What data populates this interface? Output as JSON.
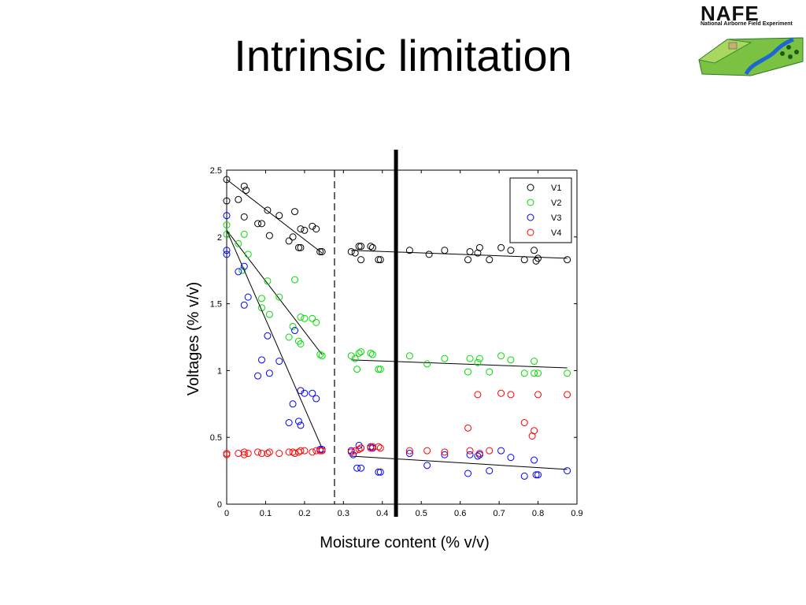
{
  "slide": {
    "title": "Intrinsic limitation"
  },
  "logo": {
    "title": "NAFE",
    "subtitle": "National Airborne Field Experiment"
  },
  "chart_data": {
    "type": "scatter",
    "title": "",
    "xlabel": "Moisture content (% v/v)",
    "ylabel": "Voltages (% v/v)",
    "xlim": [
      0,
      0.9
    ],
    "ylim": [
      0,
      2.5
    ],
    "xticks": [
      0,
      0.1,
      0.2,
      0.3,
      0.4,
      0.5,
      0.6,
      0.7,
      0.8,
      0.9
    ],
    "yticks": [
      0,
      0.5,
      1,
      1.5,
      2,
      2.5
    ],
    "grid": false,
    "legend_position": "top-right",
    "dashed_vline_x": 0.277,
    "solid_vline_x": 0.435,
    "series": [
      {
        "name": "V1",
        "color": "#000000",
        "points": [
          [
            0,
            2.43
          ],
          [
            0,
            2.27
          ],
          [
            0.03,
            2.28
          ],
          [
            0.045,
            2.38
          ],
          [
            0.05,
            2.35
          ],
          [
            0.045,
            2.15
          ],
          [
            0.08,
            2.1
          ],
          [
            0.09,
            2.1
          ],
          [
            0.105,
            2.2
          ],
          [
            0.11,
            2.01
          ],
          [
            0.135,
            2.16
          ],
          [
            0.16,
            1.97
          ],
          [
            0.17,
            2.0
          ],
          [
            0.175,
            2.19
          ],
          [
            0.185,
            1.92
          ],
          [
            0.19,
            1.92
          ],
          [
            0.19,
            2.06
          ],
          [
            0.2,
            2.05
          ],
          [
            0.22,
            2.08
          ],
          [
            0.23,
            2.06
          ],
          [
            0.24,
            1.89
          ],
          [
            0.245,
            1.89
          ],
          [
            0.32,
            1.89
          ],
          [
            0.33,
            1.88
          ],
          [
            0.34,
            1.93
          ],
          [
            0.345,
            1.83
          ],
          [
            0.345,
            1.93
          ],
          [
            0.37,
            1.93
          ],
          [
            0.375,
            1.92
          ],
          [
            0.39,
            1.83
          ],
          [
            0.395,
            1.83
          ],
          [
            0.47,
            1.9
          ],
          [
            0.52,
            1.87
          ],
          [
            0.56,
            1.9
          ],
          [
            0.62,
            1.83
          ],
          [
            0.625,
            1.89
          ],
          [
            0.645,
            1.88
          ],
          [
            0.65,
            1.92
          ],
          [
            0.675,
            1.83
          ],
          [
            0.705,
            1.92
          ],
          [
            0.73,
            1.9
          ],
          [
            0.765,
            1.83
          ],
          [
            0.79,
            1.9
          ],
          [
            0.795,
            1.82
          ],
          [
            0.8,
            1.84
          ],
          [
            0.875,
            1.83
          ]
        ],
        "trend": [
          [
            [
              0,
              2.43
            ],
            [
              0.245,
              1.88
            ]
          ],
          [
            [
              0.32,
              1.9
            ],
            [
              0.875,
              1.84
            ]
          ]
        ]
      },
      {
        "name": "V2",
        "color": "#00dd00",
        "points": [
          [
            0,
            2.09
          ],
          [
            0,
            2.02
          ],
          [
            0.03,
            1.95
          ],
          [
            0.045,
            2.02
          ],
          [
            0.055,
            1.87
          ],
          [
            0.04,
            1.75
          ],
          [
            0.09,
            1.54
          ],
          [
            0.105,
            1.67
          ],
          [
            0.09,
            1.47
          ],
          [
            0.11,
            1.42
          ],
          [
            0.135,
            1.55
          ],
          [
            0.16,
            1.25
          ],
          [
            0.17,
            1.33
          ],
          [
            0.175,
            1.68
          ],
          [
            0.185,
            1.22
          ],
          [
            0.19,
            1.2
          ],
          [
            0.19,
            1.4
          ],
          [
            0.2,
            1.39
          ],
          [
            0.22,
            1.39
          ],
          [
            0.23,
            1.36
          ],
          [
            0.24,
            1.12
          ],
          [
            0.245,
            1.11
          ],
          [
            0.32,
            1.11
          ],
          [
            0.33,
            1.09
          ],
          [
            0.335,
            1.01
          ],
          [
            0.34,
            1.13
          ],
          [
            0.345,
            1.14
          ],
          [
            0.37,
            1.13
          ],
          [
            0.375,
            1.12
          ],
          [
            0.39,
            1.01
          ],
          [
            0.395,
            1.01
          ],
          [
            0.47,
            1.11
          ],
          [
            0.515,
            1.05
          ],
          [
            0.56,
            1.09
          ],
          [
            0.62,
            0.99
          ],
          [
            0.625,
            1.09
          ],
          [
            0.645,
            1.06
          ],
          [
            0.65,
            1.09
          ],
          [
            0.675,
            0.99
          ],
          [
            0.705,
            1.11
          ],
          [
            0.73,
            1.08
          ],
          [
            0.765,
            0.98
          ],
          [
            0.79,
            1.07
          ],
          [
            0.79,
            0.98
          ],
          [
            0.8,
            0.98
          ],
          [
            0.875,
            0.98
          ]
        ],
        "trend": [
          [
            [
              0,
              2.05
            ],
            [
              0.245,
              1.12
            ]
          ],
          [
            [
              0.32,
              1.08
            ],
            [
              0.875,
              1.02
            ]
          ]
        ]
      },
      {
        "name": "V3",
        "color": "#0000ff",
        "points": [
          [
            0,
            2.16
          ],
          [
            0,
            1.87
          ],
          [
            0,
            1.9
          ],
          [
            0.03,
            1.74
          ],
          [
            0.045,
            1.78
          ],
          [
            0.045,
            1.49
          ],
          [
            0.055,
            1.55
          ],
          [
            0.08,
            0.96
          ],
          [
            0.09,
            1.08
          ],
          [
            0.105,
            1.26
          ],
          [
            0.11,
            0.98
          ],
          [
            0.135,
            1.07
          ],
          [
            0.16,
            0.61
          ],
          [
            0.17,
            0.75
          ],
          [
            0.175,
            1.3
          ],
          [
            0.185,
            0.62
          ],
          [
            0.19,
            0.85
          ],
          [
            0.19,
            0.59
          ],
          [
            0.2,
            0.83
          ],
          [
            0.22,
            0.83
          ],
          [
            0.23,
            0.79
          ],
          [
            0.24,
            0.41
          ],
          [
            0.245,
            0.41
          ],
          [
            0.32,
            0.4
          ],
          [
            0.325,
            0.37
          ],
          [
            0.335,
            0.27
          ],
          [
            0.34,
            0.44
          ],
          [
            0.345,
            0.42
          ],
          [
            0.345,
            0.27
          ],
          [
            0.37,
            0.43
          ],
          [
            0.375,
            0.42
          ],
          [
            0.39,
            0.24
          ],
          [
            0.395,
            0.24
          ],
          [
            0.47,
            0.38
          ],
          [
            0.515,
            0.29
          ],
          [
            0.56,
            0.37
          ],
          [
            0.62,
            0.23
          ],
          [
            0.625,
            0.37
          ],
          [
            0.645,
            0.36
          ],
          [
            0.65,
            0.37
          ],
          [
            0.675,
            0.25
          ],
          [
            0.705,
            0.4
          ],
          [
            0.73,
            0.35
          ],
          [
            0.765,
            0.21
          ],
          [
            0.79,
            0.33
          ],
          [
            0.795,
            0.22
          ],
          [
            0.8,
            0.22
          ],
          [
            0.875,
            0.25
          ]
        ],
        "trend": [
          [
            [
              0,
              2.05
            ],
            [
              0.245,
              0.42
            ]
          ],
          [
            [
              0.32,
              0.36
            ],
            [
              0.875,
              0.26
            ]
          ]
        ]
      },
      {
        "name": "V4",
        "color": "#ff0000",
        "points": [
          [
            0,
            0.37
          ],
          [
            0,
            0.38
          ],
          [
            0.03,
            0.38
          ],
          [
            0.045,
            0.37
          ],
          [
            0.045,
            0.39
          ],
          [
            0.055,
            0.38
          ],
          [
            0.08,
            0.39
          ],
          [
            0.09,
            0.38
          ],
          [
            0.105,
            0.38
          ],
          [
            0.11,
            0.39
          ],
          [
            0.135,
            0.38
          ],
          [
            0.16,
            0.39
          ],
          [
            0.17,
            0.39
          ],
          [
            0.175,
            0.38
          ],
          [
            0.185,
            0.39
          ],
          [
            0.19,
            0.4
          ],
          [
            0.2,
            0.4
          ],
          [
            0.22,
            0.39
          ],
          [
            0.23,
            0.4
          ],
          [
            0.24,
            0.4
          ],
          [
            0.245,
            0.4
          ],
          [
            0.32,
            0.39
          ],
          [
            0.33,
            0.4
          ],
          [
            0.34,
            0.41
          ],
          [
            0.345,
            0.42
          ],
          [
            0.37,
            0.42
          ],
          [
            0.375,
            0.43
          ],
          [
            0.39,
            0.43
          ],
          [
            0.395,
            0.42
          ],
          [
            0.47,
            0.4
          ],
          [
            0.515,
            0.4
          ],
          [
            0.56,
            0.39
          ],
          [
            0.62,
            0.57
          ],
          [
            0.625,
            0.4
          ],
          [
            0.645,
            0.82
          ],
          [
            0.65,
            0.38
          ],
          [
            0.675,
            0.4
          ],
          [
            0.705,
            0.83
          ],
          [
            0.73,
            0.82
          ],
          [
            0.765,
            0.61
          ],
          [
            0.785,
            0.51
          ],
          [
            0.79,
            0.55
          ],
          [
            0.8,
            0.82
          ],
          [
            0.875,
            0.82
          ]
        ],
        "trend": []
      }
    ]
  }
}
